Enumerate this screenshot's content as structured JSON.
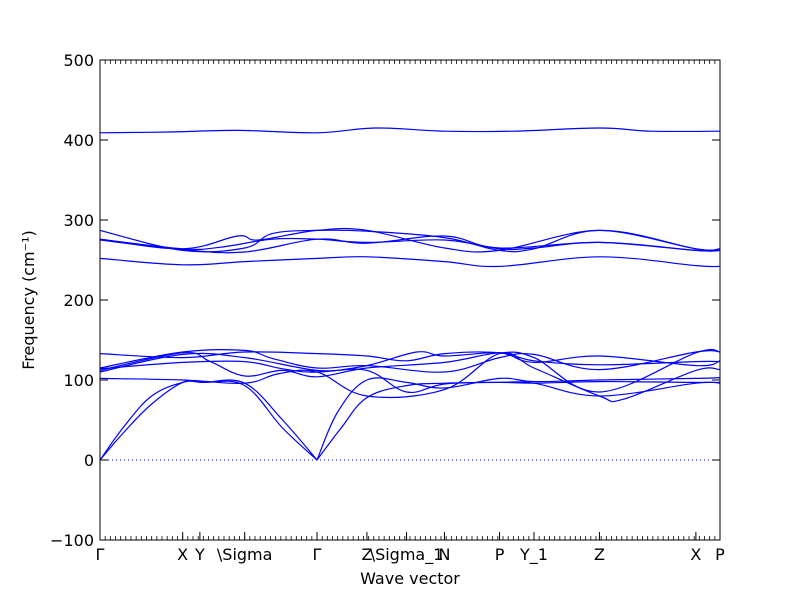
{
  "chart_data": {
    "type": "line",
    "title": "",
    "xlabel": "Wave vector",
    "ylabel": "Frequency (cm⁻¹)",
    "ylim": [
      -100,
      500
    ],
    "yticks": [
      -100,
      0,
      100,
      200,
      300,
      400,
      500
    ],
    "xlim": [
      0,
      18
    ],
    "grid": false,
    "zero_line": true,
    "line_color": "#0000ff",
    "zero_line_color": "#0000ff",
    "high_symmetry_points": [
      {
        "label": "Γ",
        "x": 0.0
      },
      {
        "label": "X",
        "x": 2.4
      },
      {
        "label": "Y",
        "x": 2.9
      },
      {
        "label": "\\Sigma",
        "x": 4.2
      },
      {
        "label": "Γ",
        "x": 6.3
      },
      {
        "label": "Z",
        "x": 7.75
      },
      {
        "label": "\\Sigma_1",
        "x": 8.9
      },
      {
        "label": "N",
        "x": 10.0
      },
      {
        "label": "P",
        "x": 11.6
      },
      {
        "label": "Y_1",
        "x": 12.6
      },
      {
        "label": "Z",
        "x": 14.5
      },
      {
        "label": "X",
        "x": 17.3
      },
      {
        "label": "P",
        "x": 18.0
      }
    ],
    "series": [
      {
        "x": [
          0,
          2,
          4,
          6.3,
          8,
          10,
          12,
          14.5,
          16,
          18
        ],
        "y": [
          409,
          410,
          412,
          409,
          415,
          411,
          411,
          415,
          411,
          411
        ]
      },
      {
        "x": [
          0,
          2.4,
          4.2,
          6.3,
          7.75,
          10,
          11.6,
          14.5,
          17.3,
          18
        ],
        "y": [
          252,
          244,
          248,
          252,
          254,
          248,
          242,
          254,
          243,
          242
        ]
      },
      {
        "x": [
          0,
          2.4,
          3.5,
          5,
          6.3,
          7.75,
          10,
          11.6,
          12.6,
          14.5,
          17.3,
          18
        ],
        "y": [
          276,
          264,
          266,
          276,
          276,
          272,
          275,
          264,
          265,
          272,
          262,
          262
        ]
      },
      {
        "x": [
          0,
          2.4,
          4.2,
          5,
          6.3,
          7.75,
          10,
          11.6,
          12.6,
          14.5,
          17.3,
          18
        ],
        "y": [
          287,
          262,
          265,
          283,
          287,
          286,
          278,
          262,
          264,
          287,
          264,
          264
        ]
      },
      {
        "x": [
          0,
          2.4,
          4,
          4.6,
          6.3,
          7.75,
          10,
          11.6,
          14.5,
          17.3,
          18
        ],
        "y": [
          276,
          264,
          280,
          275,
          287,
          287,
          265,
          262,
          287,
          264,
          264
        ]
      },
      {
        "x": [
          0,
          2.4,
          4.2,
          6.3,
          7.75,
          10,
          11.6,
          14.5,
          17.3,
          18
        ],
        "y": [
          275,
          263,
          260,
          276,
          271,
          280,
          265,
          272,
          262,
          262
        ]
      },
      {
        "x": [
          0,
          0.7,
          1.5,
          2.4,
          3,
          4.2,
          5.3,
          6.3
        ],
        "y": [
          0,
          42,
          80,
          97,
          97,
          93,
          40,
          0
        ]
      },
      {
        "x": [
          0,
          0.7,
          1.5,
          2.4,
          3,
          4.2,
          5.3,
          6.3
        ],
        "y": [
          0,
          35,
          70,
          97,
          97,
          96,
          50,
          0
        ]
      },
      {
        "x": [
          6.3,
          7,
          7.75,
          8.9,
          10,
          11.6,
          12.6,
          14.5,
          17.3,
          18
        ],
        "y": [
          0,
          40,
          78,
          93,
          96,
          97,
          96,
          98,
          97,
          97
        ]
      },
      {
        "x": [
          6.3,
          6.9,
          7.75,
          8.9,
          10,
          11.6,
          12.6,
          14.5,
          17.3,
          18
        ],
        "y": [
          0,
          60,
          100,
          97,
          90,
          102,
          98,
          100,
          102,
          103
        ]
      },
      {
        "x": [
          0,
          2.4,
          4.2,
          5.2,
          6.3,
          7.75,
          10,
          11.6,
          12.6,
          14.5,
          15.2,
          17.3,
          18
        ],
        "y": [
          102,
          100,
          96,
          108,
          110,
          80,
          88,
          133,
          115,
          80,
          76,
          112,
          113
        ]
      },
      {
        "x": [
          0,
          2.4,
          4.2,
          6.3,
          7.75,
          8.9,
          10,
          11.6,
          12.6,
          14.5,
          17.3,
          18
        ],
        "y": [
          110,
          132,
          128,
          112,
          112,
          85,
          95,
          97,
          96,
          80,
          96,
          96
        ]
      },
      {
        "x": [
          0,
          2.4,
          3.2,
          4.2,
          5.3,
          6.3,
          7.75,
          10,
          11.6,
          12.6,
          14.5,
          17.3,
          18
        ],
        "y": [
          112,
          134,
          123,
          105,
          112,
          104,
          115,
          122,
          134,
          128,
          85,
          134,
          135
        ]
      },
      {
        "x": [
          0,
          2.4,
          4.2,
          5.3,
          6.3,
          7.75,
          9.2,
          10,
          11.6,
          12.6,
          14.5,
          17.3,
          18
        ],
        "y": [
          114,
          122,
          123,
          114,
          110,
          118,
          135,
          130,
          134,
          124,
          119,
          123,
          123
        ]
      },
      {
        "x": [
          0,
          2.4,
          4.2,
          6.3,
          7.75,
          8.9,
          10,
          11.6,
          12.6,
          14.5,
          17.3,
          18
        ],
        "y": [
          133,
          128,
          135,
          133,
          130,
          124,
          133,
          134,
          122,
          130,
          118,
          124
        ]
      },
      {
        "x": [
          0,
          2.4,
          4.2,
          5,
          6.3,
          7.75,
          10,
          11.6,
          12.6,
          14.5,
          17.3,
          18
        ],
        "y": [
          115,
          135,
          137,
          127,
          115,
          118,
          110,
          128,
          132,
          113,
          135,
          135
        ]
      }
    ]
  }
}
